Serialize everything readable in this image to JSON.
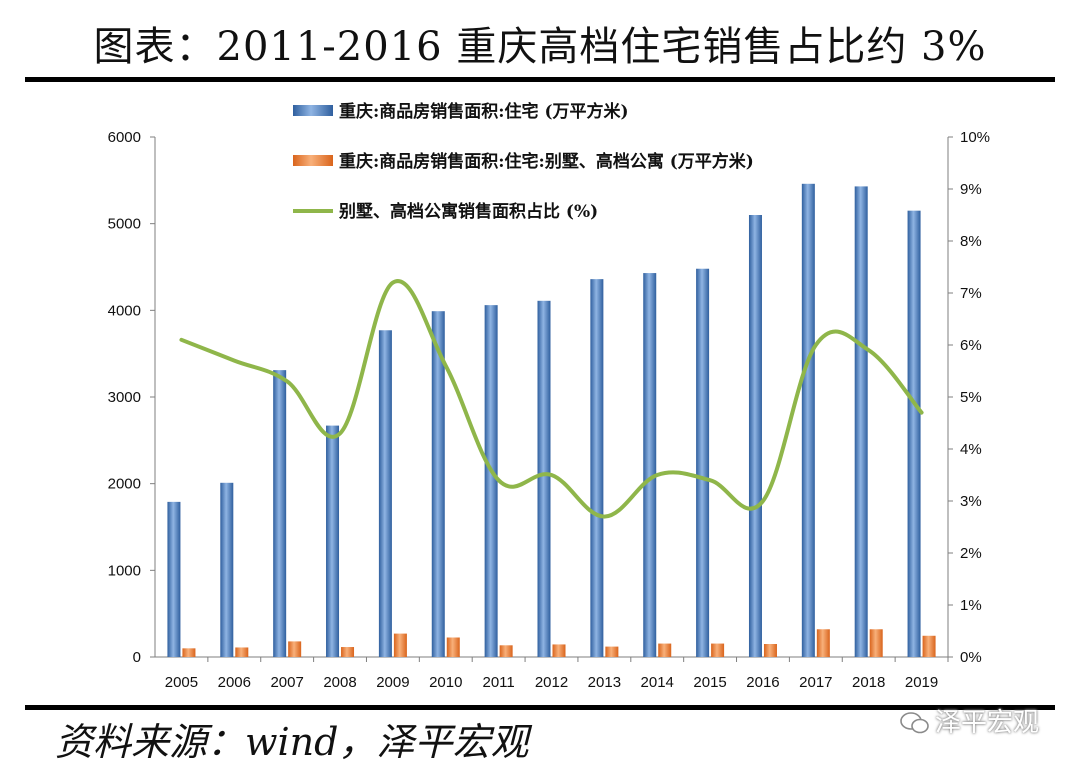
{
  "title": "图表：2011-2016 重庆高档住宅销售占比约 3%",
  "source": "资料来源：wind，泽平宏观",
  "watermark": "泽平宏观",
  "chart_data": {
    "type": "bar",
    "categories": [
      "2005",
      "2006",
      "2007",
      "2008",
      "2009",
      "2010",
      "2011",
      "2012",
      "2013",
      "2014",
      "2015",
      "2016",
      "2017",
      "2018",
      "2019"
    ],
    "series": [
      {
        "name": "重庆:商品房销售面积:住宅 (万平方米)",
        "type": "bar",
        "axis": "left",
        "color": "#4a7ebb",
        "values": [
          1790,
          2010,
          3310,
          2670,
          3770,
          3990,
          4060,
          4110,
          4360,
          4430,
          4480,
          5100,
          5460,
          5430,
          5150
        ]
      },
      {
        "name": "重庆:商品房销售面积:住宅:别墅、高档公寓 (万平方米)",
        "type": "bar",
        "axis": "left",
        "color": "#ed7d31",
        "values": [
          100,
          110,
          180,
          115,
          270,
          225,
          135,
          145,
          120,
          155,
          155,
          150,
          320,
          320,
          245
        ]
      },
      {
        "name": "别墅、高档公寓销售面积占比 (%)",
        "type": "line",
        "axis": "right",
        "color": "#8fb64a",
        "values": [
          6.1,
          5.7,
          5.3,
          4.3,
          7.2,
          5.6,
          3.4,
          3.5,
          2.7,
          3.5,
          3.4,
          3.0,
          6.0,
          5.9,
          4.7
        ]
      }
    ],
    "y_left": {
      "min": 0,
      "max": 6000,
      "ticks": [
        0,
        1000,
        2000,
        3000,
        4000,
        5000,
        6000
      ]
    },
    "y_right": {
      "min": 0,
      "max": 10,
      "ticks": [
        "0%",
        "1%",
        "2%",
        "3%",
        "4%",
        "5%",
        "6%",
        "7%",
        "8%",
        "9%",
        "10%"
      ]
    },
    "legend": "top-left-inside",
    "grid": false
  }
}
